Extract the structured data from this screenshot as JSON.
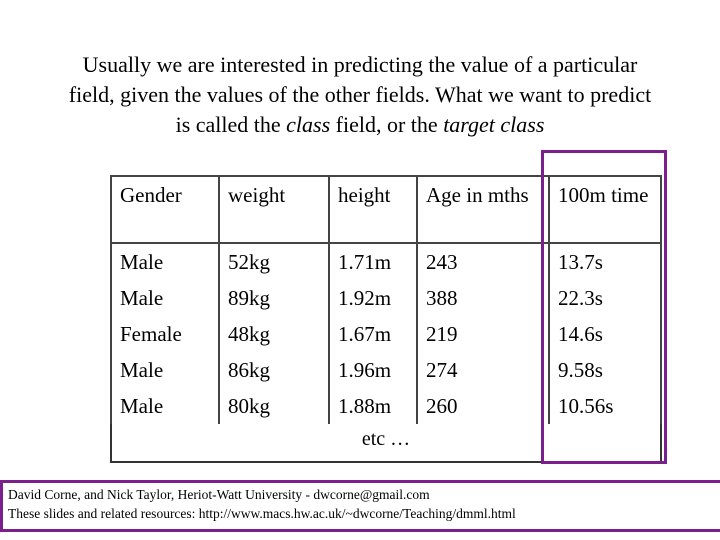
{
  "heading": {
    "parts": [
      {
        "text": "Usually we are interested in predicting the value of a particular field, given the values of the other fields. What we want to predict is called the ",
        "italic": false
      },
      {
        "text": "class",
        "italic": true
      },
      {
        "text": " field, or the ",
        "italic": false
      },
      {
        "text": "target class",
        "italic": true
      }
    ]
  },
  "table": {
    "header": [
      "Gender",
      "weight",
      "height",
      "Age in mths",
      "100m time"
    ],
    "rows": [
      [
        "Male",
        "52kg",
        "1.71m",
        "243",
        "13.7s"
      ],
      [
        "Male",
        "89kg",
        "1.92m",
        "388",
        "22.3s"
      ],
      [
        "Female",
        "48kg",
        "1.67m",
        "219",
        "14.6s"
      ],
      [
        "Male",
        "86kg",
        "1.96m",
        "274",
        "9.58s"
      ],
      [
        "Male",
        "80kg",
        "1.88m",
        "260",
        "10.56s"
      ]
    ],
    "continuation": "etc …"
  },
  "footer": {
    "lines": [
      "David Corne, and Nick Taylor,  Heriot-Watt University  -  dwcorne@gmail.com",
      "These slides and related resources:   http://www.macs.hw.ac.uk/~dwcorne/Teaching/dmml.html"
    ]
  }
}
